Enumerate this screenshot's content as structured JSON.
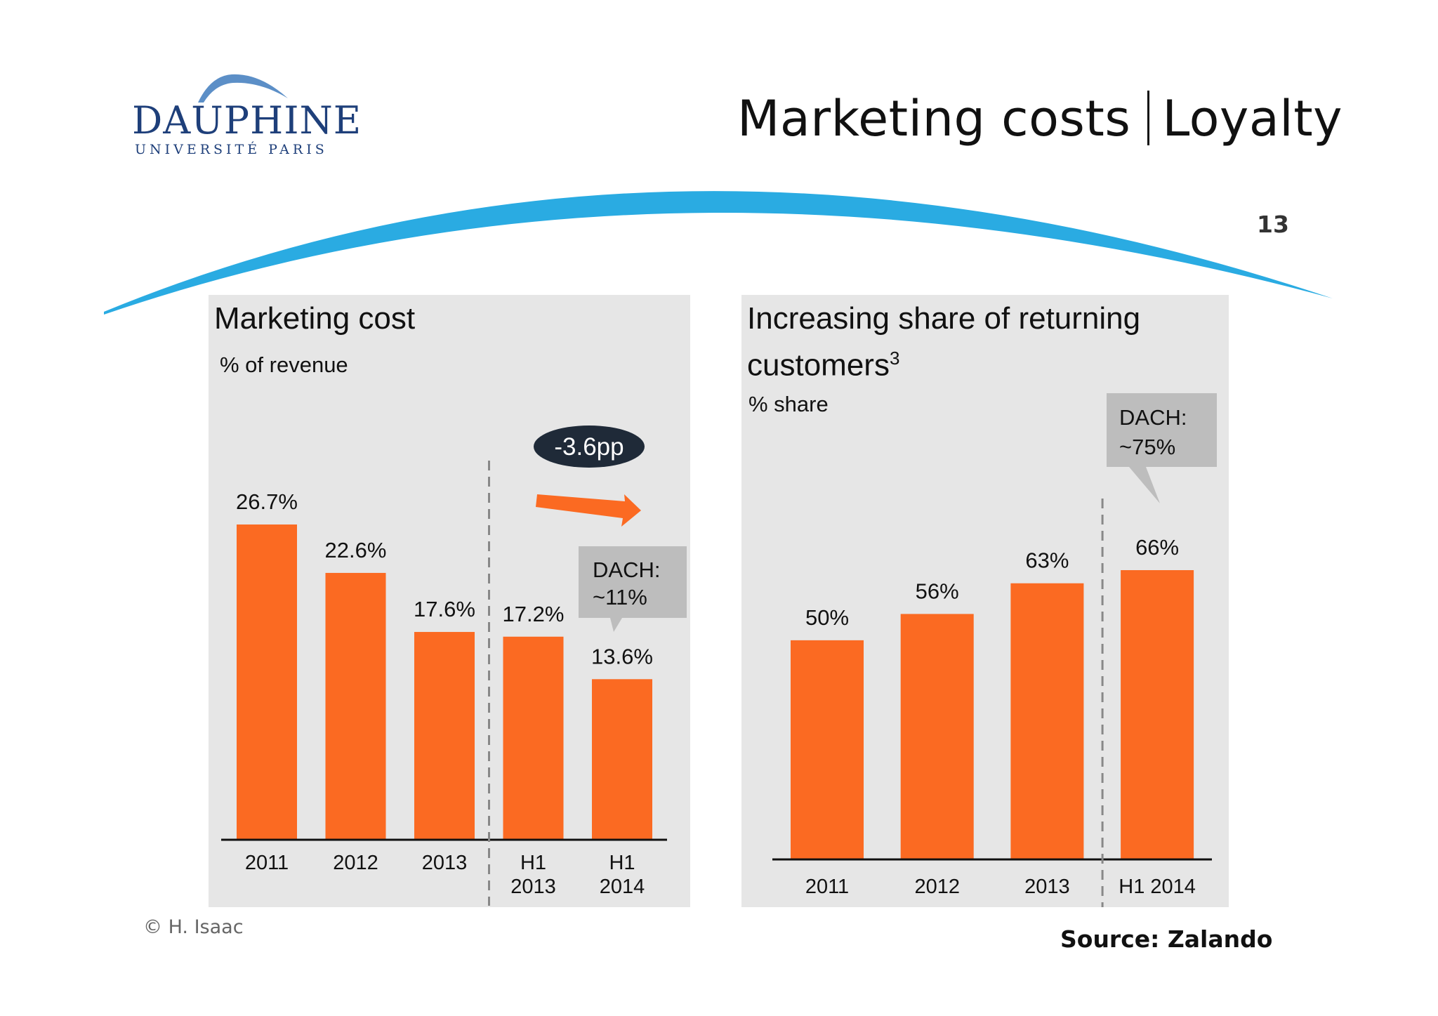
{
  "header": {
    "logo_name": "DAUPHINE",
    "logo_sub": "UNIVERSITÉ PARIS",
    "title_left": "Marketing costs",
    "title_right": "Loyalty",
    "page_number": "13"
  },
  "colors": {
    "bar": "#fb6a22",
    "arc": "#2aabe2",
    "panel": "#e6e6e6",
    "callout": "#bdbdbd",
    "badge": "#1f2a38",
    "logo": "#1e3f7a"
  },
  "chart_data": [
    {
      "type": "bar",
      "title": "Marketing cost",
      "subtitle": "% of revenue",
      "categories": [
        "2011",
        "2012",
        "2013",
        "H1 2013",
        "H1 2014"
      ],
      "category_lines": [
        [
          "2011"
        ],
        [
          "2012"
        ],
        [
          "2013"
        ],
        [
          "H1",
          "2013"
        ],
        [
          "H1",
          "2014"
        ]
      ],
      "values": [
        26.7,
        22.6,
        17.6,
        17.2,
        13.6
      ],
      "data_labels": [
        "26.7%",
        "22.6%",
        "17.6%",
        "17.2%",
        "13.6%"
      ],
      "ylim": [
        0,
        26.7
      ],
      "divider_after_index": 2,
      "annotations": {
        "badge": "-3.6pp",
        "callout_lines": [
          "DACH:",
          "~11%"
        ]
      }
    },
    {
      "type": "bar",
      "title": "Increasing share of returning customers",
      "title_sup": "3",
      "subtitle": "% share",
      "categories": [
        "2011",
        "2012",
        "2013",
        "H1 2014"
      ],
      "values": [
        50,
        56,
        63,
        66
      ],
      "data_labels": [
        "50%",
        "56%",
        "63%",
        "66%"
      ],
      "ylim": [
        0,
        66
      ],
      "divider_after_index": 2,
      "annotations": {
        "callout_lines": [
          "DACH:",
          "~75%"
        ]
      }
    }
  ],
  "footer": {
    "copyright": "© H. Isaac",
    "source": "Source: Zalando"
  }
}
